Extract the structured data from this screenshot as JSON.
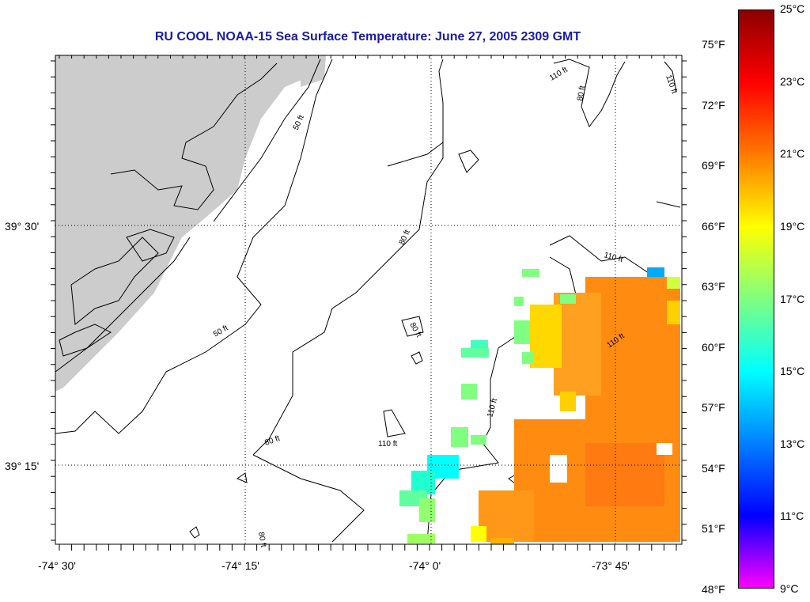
{
  "title": "RU COOL  NOAA-15  Sea Surface Temperature:  June 27, 2005 2309 GMT",
  "map": {
    "x_ticks": [
      "-74° 30'",
      "-74° 15'",
      "-74° 0'",
      "-73° 45'"
    ],
    "y_ticks": [
      "39° 30'",
      "39° 15'"
    ],
    "contour_labels": [
      "50 ft",
      "80 ft",
      "110 ft"
    ],
    "land_color": "#cccccc"
  },
  "colorbar": {
    "celsius": [
      "25°C",
      "23°C",
      "21°C",
      "19°C",
      "17°C",
      "15°C",
      "13°C",
      "11°C",
      "9°C"
    ],
    "fahrenheit": [
      "75°F",
      "72°F",
      "69°F",
      "66°F",
      "63°F",
      "60°F",
      "57°F",
      "54°F",
      "51°F",
      "48°F"
    ],
    "colors_top_to_bottom": [
      "#8b0000",
      "#ff0000",
      "#ff7a00",
      "#ffff00",
      "#7fff7f",
      "#00ffff",
      "#0080ff",
      "#0000ff",
      "#ff00ff"
    ]
  }
}
